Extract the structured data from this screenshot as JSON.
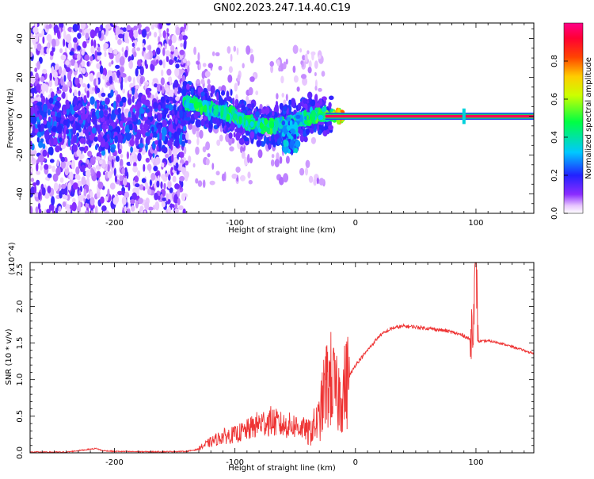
{
  "title": "GN02.2023.247.14.40.C19",
  "colors": {
    "snr_line": "#ee3333",
    "ridge": "#dd2255",
    "band_edge": "#22dd22"
  },
  "chart_data": [
    {
      "type": "heatmap",
      "panel": "spectrogram",
      "xlabel": "Height of straight line (km)",
      "ylabel": "Frequency (Hz)",
      "xlim": [
        -270,
        148
      ],
      "ylim": [
        -50,
        48
      ],
      "x_ticks": [
        -200,
        -100,
        0,
        100
      ],
      "y_ticks": [
        -40,
        -20,
        0,
        20,
        40
      ],
      "colorbar": {
        "label": "Normalized spectral amplitude",
        "range": [
          0,
          1
        ],
        "ticks": [
          "0.0",
          "0.2",
          "0.4",
          "0.6",
          "0.8"
        ],
        "tick_values": [
          0.0,
          0.2,
          0.4,
          0.6,
          0.8
        ],
        "colormap": "hsv-rainbow (violet-blue-cyan-green-yellow-red-magenta)"
      },
      "ridge_line": {
        "x_start": -25,
        "x_end": 148,
        "frequency": 0,
        "amplitude": 0.95
      },
      "ridge_trace": {
        "x": [
          -140,
          -130,
          -120,
          -110,
          -100,
          -90,
          -80,
          -70,
          -60,
          -50,
          -40,
          -30,
          -20,
          -10
        ],
        "y": [
          7,
          5,
          3,
          2,
          0,
          -3,
          -5,
          -5,
          -4,
          -3,
          -1,
          1,
          0,
          0
        ],
        "amplitude": [
          0.45,
          0.5,
          0.42,
          0.45,
          0.5,
          0.45,
          0.48,
          0.5,
          0.42,
          0.4,
          0.45,
          0.5,
          0.6,
          0.8
        ]
      },
      "spike": {
        "x": 90,
        "frequency_range": [
          -4,
          4
        ]
      }
    },
    {
      "type": "line",
      "panel": "snr",
      "xlabel": "Height of straight line (km)",
      "ylabel": "SNR (10 * v/v)",
      "y_multiplier": "(x10^4)",
      "xlim": [
        -270,
        148
      ],
      "ylim": [
        0,
        2.6
      ],
      "x_ticks": [
        -200,
        -100,
        0,
        100
      ],
      "y_ticks": [
        "0.0",
        "0.5",
        "1.0",
        "1.5",
        "2.0",
        "2.5"
      ],
      "y_tick_values": [
        0.0,
        0.5,
        1.0,
        1.5,
        2.0,
        2.5
      ],
      "series": [
        {
          "x": [
            -270,
            -240,
            -215,
            -210,
            -200,
            -180,
            -160,
            -140,
            -130,
            -120,
            -110,
            -100,
            -90,
            -80,
            -70,
            -60,
            -50,
            -40,
            -35,
            -30,
            -25,
            -20,
            -15,
            -10,
            -5,
            0,
            10,
            20,
            30,
            40,
            50,
            60,
            70,
            80,
            90,
            95,
            98,
            100,
            102,
            110,
            120,
            130,
            140,
            148
          ],
          "y": [
            0.01,
            0.01,
            0.06,
            0.03,
            0.02,
            0.015,
            0.015,
            0.02,
            0.05,
            0.12,
            0.18,
            0.2,
            0.25,
            0.32,
            0.35,
            0.3,
            0.3,
            0.25,
            0.35,
            0.45,
            0.9,
            1.0,
            0.75,
            0.85,
            1.05,
            1.2,
            1.4,
            1.6,
            1.7,
            1.73,
            1.72,
            1.7,
            1.68,
            1.65,
            1.6,
            1.55,
            1.9,
            2.6,
            1.52,
            1.53,
            1.5,
            1.45,
            1.4,
            1.35
          ]
        }
      ]
    }
  ]
}
